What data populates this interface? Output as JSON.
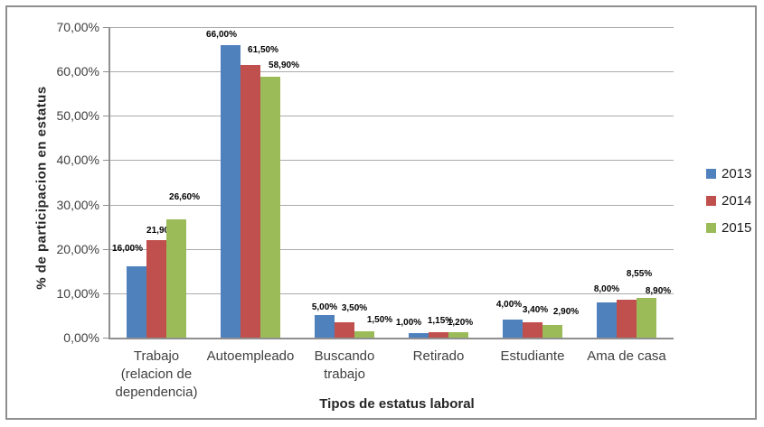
{
  "chart_data": {
    "type": "bar",
    "title": "",
    "xlabel": "Tipos de estatus laboral",
    "ylabel": "% de participacion en estatus",
    "categories": [
      "Trabajo (relacion de dependencia)",
      "Autoempleado",
      "Buscando trabajo",
      "Retirado",
      "Estudiante",
      "Ama de casa"
    ],
    "categories_display": [
      "Trabajo\n(relacion de\ndependencia)",
      "Autoempleado",
      "Buscando\ntrabajo",
      "Retirado",
      "Estudiante",
      "Ama de casa"
    ],
    "series": [
      {
        "name": "2013",
        "color": "#4F81BD",
        "values": [
          16.0,
          66.0,
          5.0,
          1.0,
          4.0,
          8.0
        ],
        "labels": [
          "16,00%",
          "66,00%",
          "5,00%",
          "1,00%",
          "4,00%",
          "8,00%"
        ]
      },
      {
        "name": "2014",
        "color": "#C0504D",
        "values": [
          21.9,
          61.5,
          3.5,
          1.15,
          3.4,
          8.55
        ],
        "labels": [
          "21,90%",
          "61,50%",
          "3,50%",
          "1,15%",
          "3,40%",
          "8,55%"
        ]
      },
      {
        "name": "2015",
        "color": "#9BBB59",
        "values": [
          26.6,
          58.9,
          1.5,
          1.2,
          2.9,
          8.9
        ],
        "labels": [
          "26,60%",
          "58,90%",
          "1,50%",
          "1,20%",
          "2,90%",
          "8,90%"
        ]
      }
    ],
    "ylim": [
      0,
      70
    ],
    "ytick_step": 10,
    "yticks": [
      "0,00%",
      "10,00%",
      "20,00%",
      "30,00%",
      "40,00%",
      "50,00%",
      "60,00%",
      "70,00%"
    ],
    "grid": true,
    "legend_position": "right"
  },
  "colors": {
    "series_2013": "#4F81BD",
    "series_2014": "#C0504D",
    "series_2015": "#9BBB59",
    "gridline": "#ABABAB",
    "axis": "#8F8F8F",
    "frame_border": "#8F8F8F",
    "tick_text": "#3F3F3F",
    "data_label_text": "#000000"
  }
}
